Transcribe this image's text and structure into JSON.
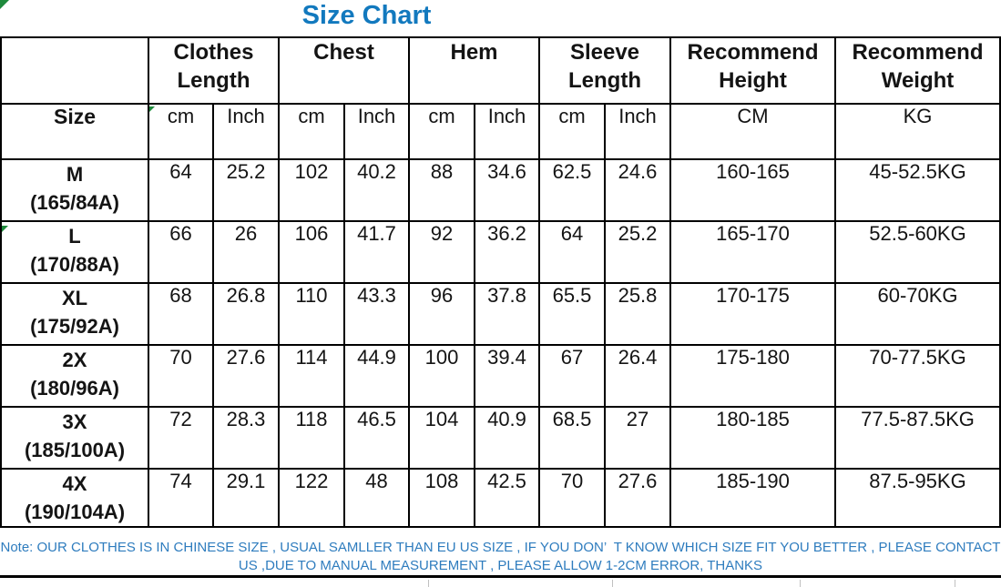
{
  "chart_data": {
    "type": "table",
    "title": "Size Chart",
    "group_headers": [
      {
        "label": "Clothes Length",
        "span": 2
      },
      {
        "label": "Chest",
        "span": 2
      },
      {
        "label": "Hem",
        "span": 2
      },
      {
        "label": "Sleeve Length",
        "span": 2
      },
      {
        "label": "Recommend Height",
        "span": 1
      },
      {
        "label": "Recommend Weight",
        "span": 1
      }
    ],
    "columns": [
      "Size",
      "cm",
      "Inch",
      "cm",
      "Inch",
      "cm",
      "Inch",
      "cm",
      "Inch",
      "CM",
      "KG"
    ],
    "rows": [
      {
        "size": "M",
        "spec": "(165/84A)",
        "values": [
          "64",
          "25.2",
          "102",
          "40.2",
          "88",
          "34.6",
          "62.5",
          "24.6",
          "160-165",
          "45-52.5KG"
        ]
      },
      {
        "size": "L",
        "spec": "(170/88A)",
        "values": [
          "66",
          "26",
          "106",
          "41.7",
          "92",
          "36.2",
          "64",
          "25.2",
          "165-170",
          "52.5-60KG"
        ]
      },
      {
        "size": "XL",
        "spec": "(175/92A)",
        "values": [
          "68",
          "26.8",
          "110",
          "43.3",
          "96",
          "37.8",
          "65.5",
          "25.8",
          "170-175",
          "60-70KG"
        ]
      },
      {
        "size": "2X",
        "spec": "(180/96A)",
        "values": [
          "70",
          "27.6",
          "114",
          "44.9",
          "100",
          "39.4",
          "67",
          "26.4",
          "175-180",
          "70-77.5KG"
        ]
      },
      {
        "size": "3X",
        "spec": "(185/100A)",
        "values": [
          "72",
          "28.3",
          "118",
          "46.5",
          "104",
          "40.9",
          "68.5",
          "27",
          "180-185",
          "77.5-87.5KG"
        ]
      },
      {
        "size": "4X",
        "spec": "(190/104A)",
        "values": [
          "74",
          "29.1",
          "122",
          "48",
          "108",
          "42.5",
          "70",
          "27.6",
          "185-190",
          "87.5-95KG"
        ]
      }
    ]
  },
  "note": {
    "line1": "Note: OUR CLOTHES IS IN CHINESE SIZE , USUAL SAMLLER THAN EU US SIZE , IF YOU DON’  T KNOW WHICH SIZE FIT YOU BETTER , PLEASE CONTACT",
    "line2": "US ,DUE TO MANUAL MEASUREMENT , PLEASE ALLOW 1-2CM ERROR, THANKS"
  },
  "colors": {
    "title_blue": "#1279BE",
    "note_blue": "#2E7CBE",
    "border_black": "#000000",
    "indicator_green": "#1E8A3C"
  }
}
